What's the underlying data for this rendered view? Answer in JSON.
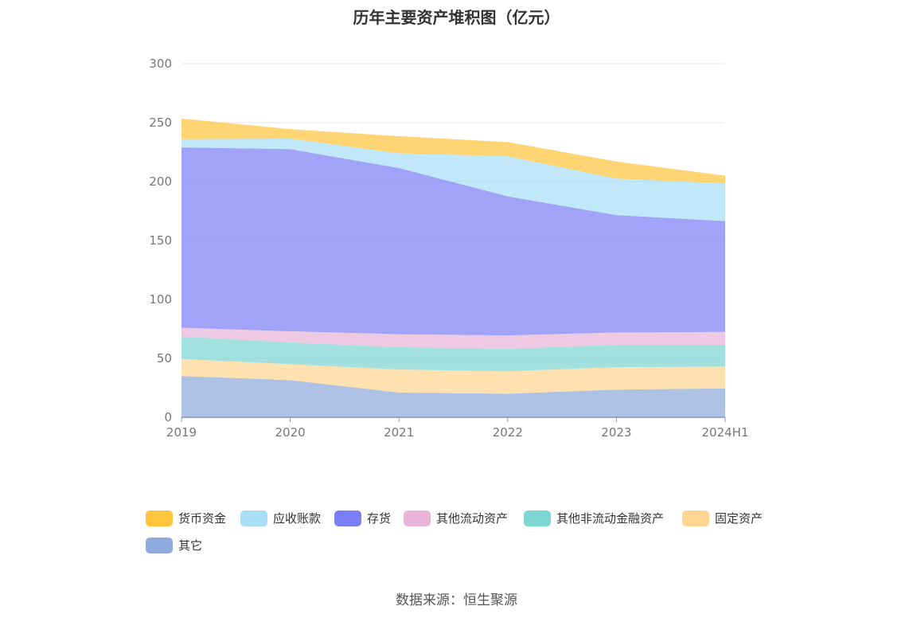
{
  "title": "历年主要资产堆积图（亿元）",
  "source": "数据来源：恒生聚源",
  "chart_data": {
    "type": "area",
    "stacked": true,
    "categories": [
      "2019",
      "2020",
      "2021",
      "2022",
      "2023",
      "2024H1"
    ],
    "ylim": [
      0,
      300
    ],
    "yticks": [
      0,
      50,
      100,
      150,
      200,
      250,
      300
    ],
    "grid": true,
    "legend_position": "bottom",
    "series": [
      {
        "name": "其它",
        "color": "#8FAADC",
        "values": [
          35,
          31.5,
          21,
          20,
          23.5,
          24.5
        ]
      },
      {
        "name": "固定资产",
        "color": "#FFD591",
        "values": [
          14.5,
          13.5,
          19.5,
          19,
          19,
          18.5
        ]
      },
      {
        "name": "其他非流动金融资产",
        "color": "#7ED6D2",
        "values": [
          19,
          18.5,
          19,
          19,
          19,
          18.5
        ]
      },
      {
        "name": "其他流动资产",
        "color": "#E8B4D8",
        "values": [
          7.5,
          9.5,
          11,
          11.5,
          10.5,
          11
        ]
      },
      {
        "name": "存货",
        "color": "#7B7FF5",
        "values": [
          153,
          154.5,
          141,
          118,
          99.5,
          94
        ]
      },
      {
        "name": "应收账款",
        "color": "#A8DFF7",
        "values": [
          7,
          9,
          12.5,
          34,
          31,
          32
        ]
      },
      {
        "name": "货币资金",
        "color": "#FFC53D",
        "values": [
          17.5,
          8,
          14.5,
          12,
          14.5,
          6.5
        ]
      }
    ]
  },
  "legend": [
    {
      "label": "货币资金",
      "color": "#FFC53D"
    },
    {
      "label": "应收账款",
      "color": "#A8DFF7"
    },
    {
      "label": "存货",
      "color": "#7B7FF5"
    },
    {
      "label": "其他流动资产",
      "color": "#E8B4D8"
    },
    {
      "label": "其他非流动金融资产",
      "color": "#7ED6D2"
    },
    {
      "label": "固定资产",
      "color": "#FFD591"
    },
    {
      "label": "其它",
      "color": "#8FAADC"
    }
  ]
}
